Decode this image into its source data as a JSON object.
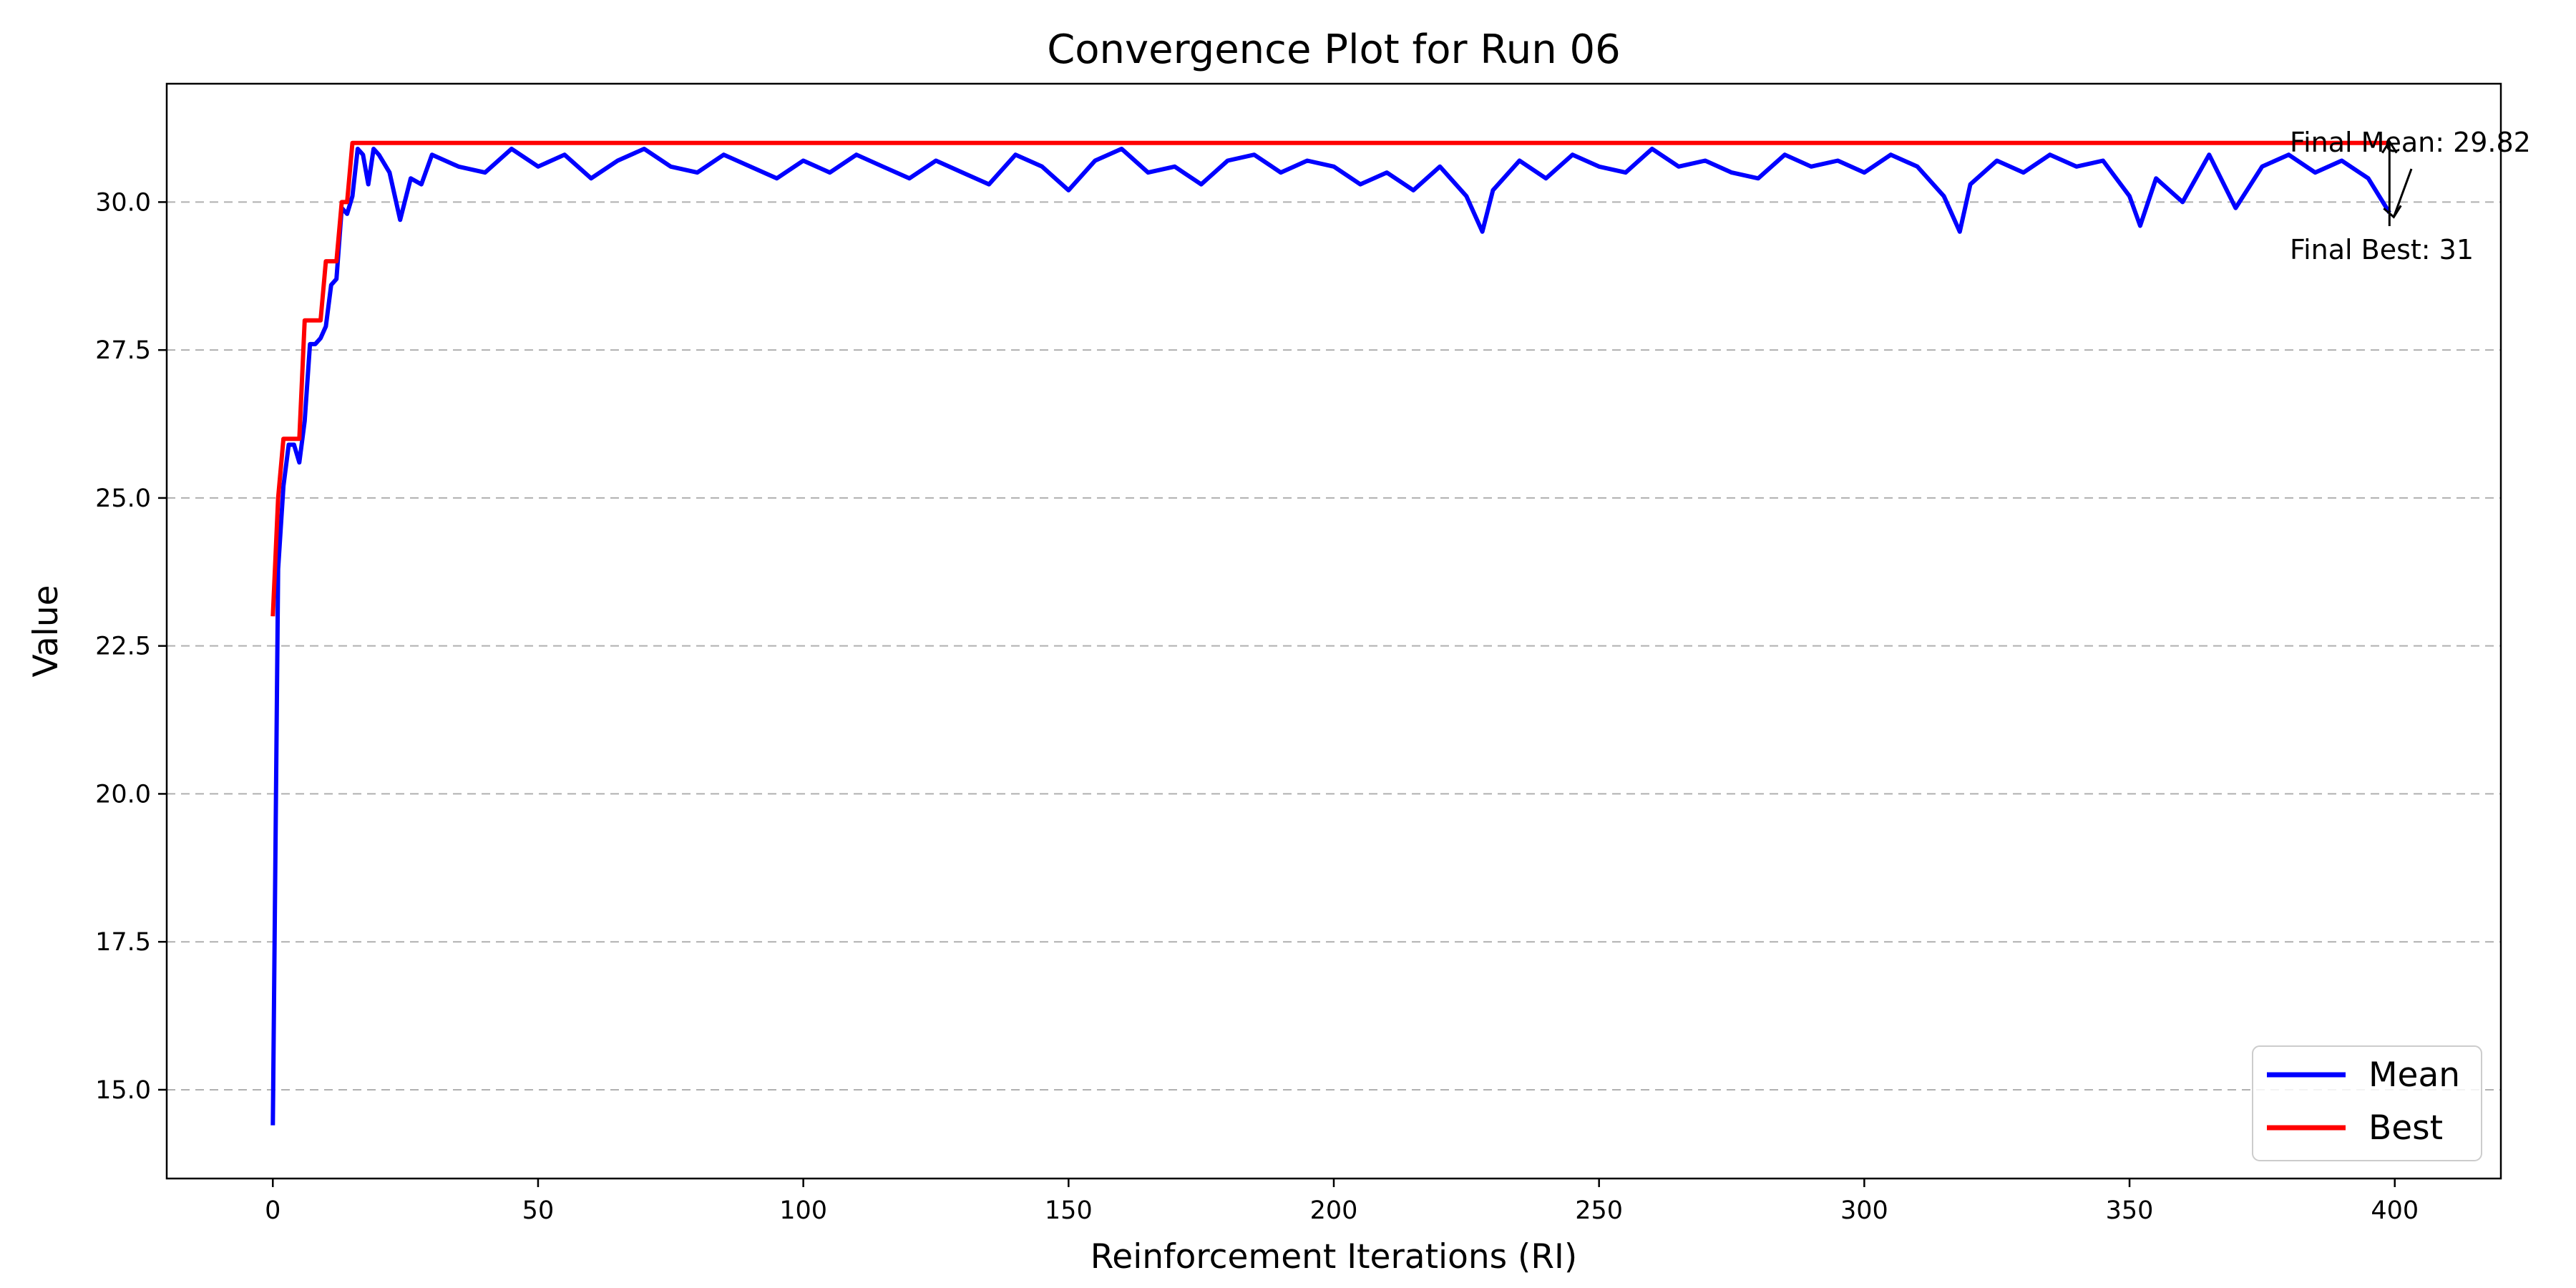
{
  "chart_data": {
    "type": "line",
    "title": "Convergence Plot for Run 06",
    "xlabel": "Reinforcement Iterations (RI)",
    "ylabel": "Value",
    "xlim": [
      -20,
      420
    ],
    "ylim": [
      13.5,
      32.0
    ],
    "xticks": [
      0,
      50,
      100,
      150,
      200,
      250,
      300,
      350,
      400
    ],
    "xtick_labels": [
      "0",
      "50",
      "100",
      "150",
      "200",
      "250",
      "300",
      "350",
      "400"
    ],
    "yticks": [
      15.0,
      17.5,
      20.0,
      22.5,
      25.0,
      27.5,
      30.0
    ],
    "ytick_labels": [
      "15.0",
      "17.5",
      "20.0",
      "22.5",
      "25.0",
      "27.5",
      "30.0"
    ],
    "grid": "y-dashed",
    "legend_position": "lower-right",
    "series": [
      {
        "name": "Mean",
        "color": "#0000ff",
        "x": [
          0,
          1,
          2,
          3,
          4,
          5,
          6,
          7,
          8,
          9,
          10,
          11,
          12,
          13,
          14,
          15,
          16,
          17,
          18,
          19,
          20,
          22,
          24,
          26,
          28,
          30,
          35,
          40,
          45,
          50,
          55,
          60,
          65,
          70,
          75,
          80,
          85,
          90,
          95,
          100,
          105,
          110,
          115,
          120,
          125,
          130,
          135,
          140,
          145,
          150,
          155,
          160,
          165,
          170,
          175,
          180,
          185,
          190,
          195,
          200,
          205,
          210,
          215,
          220,
          225,
          228,
          230,
          235,
          240,
          245,
          250,
          255,
          260,
          265,
          270,
          275,
          280,
          285,
          290,
          295,
          300,
          305,
          310,
          315,
          318,
          320,
          325,
          330,
          335,
          340,
          345,
          350,
          352,
          355,
          360,
          365,
          370,
          375,
          380,
          385,
          390,
          395,
          399
        ],
        "y": [
          14.4,
          23.8,
          25.2,
          25.9,
          25.9,
          25.6,
          26.3,
          27.6,
          27.6,
          27.7,
          27.9,
          28.6,
          28.7,
          29.9,
          29.8,
          30.1,
          30.9,
          30.8,
          30.3,
          30.9,
          30.8,
          30.5,
          29.7,
          30.4,
          30.3,
          30.8,
          30.6,
          30.5,
          30.9,
          30.6,
          30.8,
          30.4,
          30.7,
          30.9,
          30.6,
          30.5,
          30.8,
          30.6,
          30.4,
          30.7,
          30.5,
          30.8,
          30.6,
          30.4,
          30.7,
          30.5,
          30.3,
          30.8,
          30.6,
          30.2,
          30.7,
          30.9,
          30.5,
          30.6,
          30.3,
          30.7,
          30.8,
          30.5,
          30.7,
          30.6,
          30.3,
          30.5,
          30.2,
          30.6,
          30.1,
          29.5,
          30.2,
          30.7,
          30.4,
          30.8,
          30.6,
          30.5,
          30.9,
          30.6,
          30.7,
          30.5,
          30.4,
          30.8,
          30.6,
          30.7,
          30.5,
          30.8,
          30.6,
          30.1,
          29.5,
          30.3,
          30.7,
          30.5,
          30.8,
          30.6,
          30.7,
          30.1,
          29.6,
          30.4,
          30.0,
          30.8,
          29.9,
          30.6,
          30.8,
          30.5,
          30.7,
          30.4,
          29.82
        ]
      },
      {
        "name": "Best",
        "color": "#ff0000",
        "x": [
          0,
          1,
          2,
          3,
          5,
          6,
          9,
          10,
          12,
          13,
          14,
          15,
          399
        ],
        "y": [
          23,
          25,
          26,
          26,
          26,
          28,
          28,
          29,
          29,
          30,
          30,
          31,
          31
        ]
      }
    ],
    "annotations": [
      {
        "text": "Final Mean: 29.82",
        "x": 399,
        "y": 29.82
      },
      {
        "text": "Final Best: 31",
        "x": 399,
        "y": 31
      }
    ]
  }
}
